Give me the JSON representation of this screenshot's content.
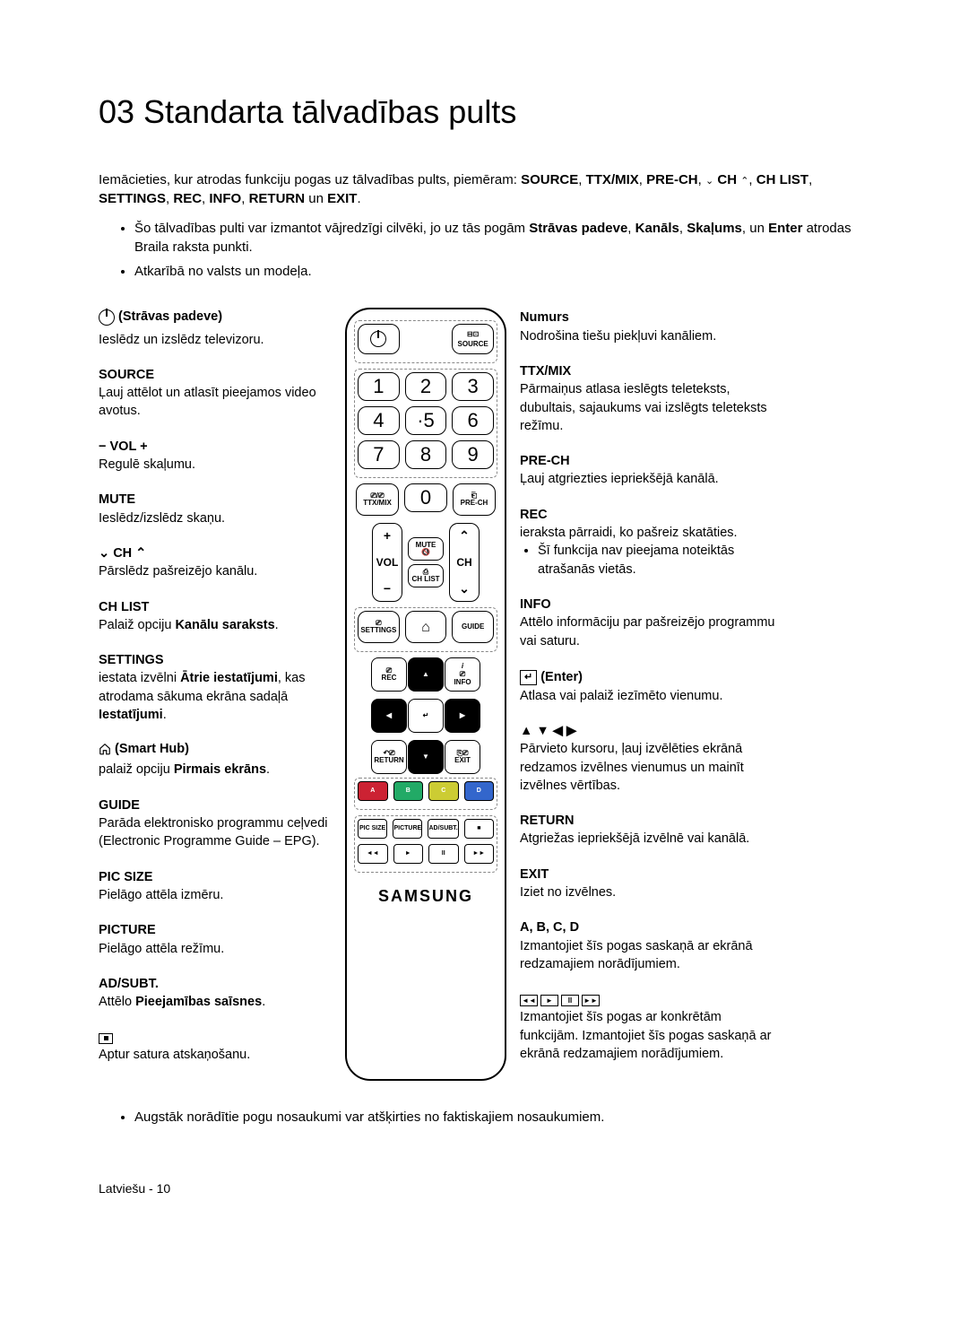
{
  "title": "03  Standarta tālvadības pults",
  "intro_parts": [
    "Iemācieties, kur atrodas funkciju pogas uz tālvadības pults, piemēram: ",
    "SOURCE",
    ", ",
    "TTX/MIX",
    ", ",
    "PRE-CH",
    ", ",
    " CH ",
    ", ",
    "CH LIST",
    ", ",
    "SETTINGS",
    ", ",
    "REC",
    ", ",
    "INFO",
    ", ",
    "RETURN",
    " un ",
    "EXIT",
    "."
  ],
  "bullets": [
    {
      "pre": "Šo tālvadības pulti var izmantot vājredzīgi cilvēki, jo uz tās pogām ",
      "b": "Strāvas padeve",
      "mid": ", ",
      "b2": "Kanāls",
      "mid2": ", ",
      "b3": "Skaļums",
      "mid3": ", un ",
      "b4": "Enter",
      "post": " atrodas Braila raksta punkti."
    },
    {
      "pre": "Atkarībā no valsts un modeļa."
    }
  ],
  "left": [
    {
      "icon": "power",
      "title": "(Strāvas padeve)",
      "desc": "Ieslēdz un izslēdz televizoru."
    },
    {
      "title": "SOURCE",
      "desc": "Ļauj attēlot un atlasīt pieejamos video avotus."
    },
    {
      "title": "− VOL +",
      "desc": "Regulē skaļumu."
    },
    {
      "title": "MUTE",
      "desc": "Ieslēdz/izslēdz skaņu."
    },
    {
      "icon": "cheud",
      "title": " CH ",
      "desc": "Pārslēdz pašreizējo kanālu."
    },
    {
      "title": "CH LIST",
      "desc_pre": "Palaiž opciju ",
      "desc_b": "Kanālu saraksts",
      "desc_post": "."
    },
    {
      "title": "SETTINGS",
      "desc_pre": "iestata izvēlni ",
      "desc_b": "Ātrie iestatījumi",
      "desc_mid": ", kas atrodama sākuma ekrāna sadaļā ",
      "desc_b2": "Iestatījumi",
      "desc_post": "."
    },
    {
      "icon": "home",
      "title": "(Smart Hub)",
      "desc_pre": "palaiž opciju ",
      "desc_b": "Pirmais ekrāns",
      "desc_post": "."
    },
    {
      "title": "GUIDE",
      "desc": "Parāda elektronisko programmu ceļvedi (Electronic Programme Guide – EPG)."
    },
    {
      "title": "PIC SIZE",
      "desc": "Pielāgo attēla izmēru."
    },
    {
      "title": "PICTURE",
      "desc": "Pielāgo attēla režīmu."
    },
    {
      "title": "AD/SUBT.",
      "desc_pre": "Attēlo ",
      "desc_b": "Pieejamības saīsnes",
      "desc_post": "."
    },
    {
      "icon": "stop",
      "title": "",
      "desc": "Aptur satura atskaņošanu."
    }
  ],
  "right": [
    {
      "title": "Numurs",
      "desc": "Nodrošina tiešu piekļuvi kanāliem."
    },
    {
      "title": "TTX/MIX",
      "desc": "Pārmaiņus atlasa ieslēgts teleteksts, dubultais, sajaukums vai izslēgts teleteksts režīmu."
    },
    {
      "title": "PRE-CH",
      "desc": "Ļauj atgriezties iepriekšējā kanālā."
    },
    {
      "title": "REC",
      "desc": "ieraksta pārraidi, ko pašreiz skatāties.",
      "sub": "Šī funkcija nav pieejama noteiktās atrašanās vietās."
    },
    {
      "title": "INFO",
      "desc": "Attēlo informāciju par pašreizējo programmu vai saturu."
    },
    {
      "icon": "enter",
      "title": "(Enter)",
      "desc": "Atlasa vai palaiž iezīmēto vienumu."
    },
    {
      "icon": "arrows",
      "title": "",
      "desc": "Pārvieto kursoru, ļauj izvēlēties ekrānā redzamos izvēlnes vienumus un mainīt izvēlnes vērtības."
    },
    {
      "title": "RETURN",
      "desc": "Atgriežas iepriekšējā izvēlnē vai kanālā."
    },
    {
      "title": "EXIT",
      "desc": "Iziet no izvēlnes."
    },
    {
      "title": "A, B, C, D",
      "desc": "Izmantojiet šīs pogas saskaņā ar ekrānā redzamajiem norādījumiem."
    },
    {
      "icon": "playback",
      "title": "",
      "desc": "Izmantojiet šīs pogas ar konkrētām funkcijām. Izmantojiet šīs pogas saskaņā ar ekrānā redzamajiem norādījumiem."
    }
  ],
  "remote": {
    "source": "SOURCE",
    "nums": [
      "1",
      "2",
      "3",
      "4",
      "·5",
      "6",
      "7",
      "8",
      "9"
    ],
    "ttx": "TTX/MIX",
    "zero": "0",
    "prech": "PRE-CH",
    "mute": "MUTE",
    "vol": "VOL",
    "ch": "CH",
    "chlist": "CH LIST",
    "settings": "SETTINGS",
    "home": "⌂",
    "guide": "GUIDE",
    "rec": "REC",
    "info": "INFO",
    "return": "RETURN",
    "exit": "EXIT",
    "colors": [
      "A",
      "B",
      "C",
      "D"
    ],
    "bottom": [
      "PIC SIZE",
      "PICTURE",
      "AD/SUBT.",
      "■"
    ],
    "pb": [
      "◄◄",
      "►",
      "II",
      "►►"
    ],
    "brand": "SAMSUNG"
  },
  "bottom_bullet": "Augstāk norādītie pogu nosaukumi var atšķirties no faktiskajiem nosaukumiem.",
  "footer": "Latviešu - 10"
}
